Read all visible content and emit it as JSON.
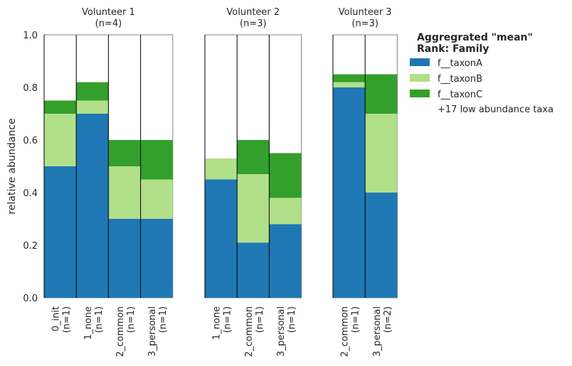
{
  "chart_data": {
    "type": "bar",
    "stacked": true,
    "ylabel": "relative abundance",
    "ylim": [
      0,
      1.0
    ],
    "yticks": [
      "0.0",
      "0.2",
      "0.4",
      "0.6",
      "0.8",
      "1.0"
    ],
    "grid": false,
    "legend": {
      "placement": "right",
      "title_line1": "Aggregrated \"mean\"",
      "title_line2": "Rank: Family",
      "entries": [
        "f__taxonA",
        "f__taxonB",
        "f__taxonC"
      ],
      "colors": [
        "#1f78b4",
        "#b2df8a",
        "#33a02c"
      ],
      "extra": "+17 low abundance taxa"
    },
    "groups": [
      {
        "title": "Volunteer  1",
        "subtitle": "(n=4)",
        "categories": [
          "0_init",
          "1_none",
          "2_common",
          "3_personal"
        ],
        "category_n": [
          "(n=1)",
          "(n=1)",
          "(n=1)",
          "(n=1)"
        ],
        "series": [
          {
            "name": "f__taxonA",
            "values": [
              0.5,
              0.7,
              0.3,
              0.3
            ]
          },
          {
            "name": "f__taxonB",
            "values": [
              0.2,
              0.05,
              0.2,
              0.15
            ]
          },
          {
            "name": "f__taxonC",
            "values": [
              0.05,
              0.07,
              0.1,
              0.15
            ]
          }
        ]
      },
      {
        "title": "Volunteer  2",
        "subtitle": "(n=3)",
        "categories": [
          "1_none",
          "2_common",
          "3_personal"
        ],
        "category_n": [
          "(n=1)",
          "(n=1)",
          "(n=1)"
        ],
        "series": [
          {
            "name": "f__taxonA",
            "values": [
              0.45,
              0.21,
              0.28
            ]
          },
          {
            "name": "f__taxonB",
            "values": [
              0.08,
              0.26,
              0.1
            ]
          },
          {
            "name": "f__taxonC",
            "values": [
              0.0,
              0.13,
              0.17
            ]
          }
        ]
      },
      {
        "title": "Volunteer  3",
        "subtitle": "(n=3)",
        "categories": [
          "2_common",
          "3_personal"
        ],
        "category_n": [
          "(n=1)",
          "(n=2)"
        ],
        "series": [
          {
            "name": "f__taxonA",
            "values": [
              0.8,
              0.4
            ]
          },
          {
            "name": "f__taxonB",
            "values": [
              0.02,
              0.3
            ]
          },
          {
            "name": "f__taxonC",
            "values": [
              0.03,
              0.15
            ]
          }
        ]
      }
    ]
  }
}
